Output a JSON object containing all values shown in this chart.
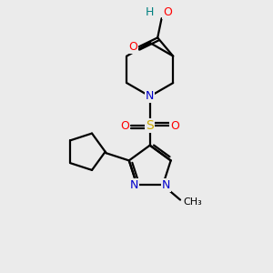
{
  "bg_color": "#ebebeb",
  "atom_colors": {
    "C": "#000000",
    "N": "#0000cc",
    "O": "#ff0000",
    "S": "#ccaa00",
    "H": "#008080"
  },
  "bond_color": "#000000",
  "bond_width": 1.6,
  "figsize": [
    3.0,
    3.0
  ],
  "dpi": 100,
  "xlim": [
    0,
    10
  ],
  "ylim": [
    0,
    10
  ]
}
